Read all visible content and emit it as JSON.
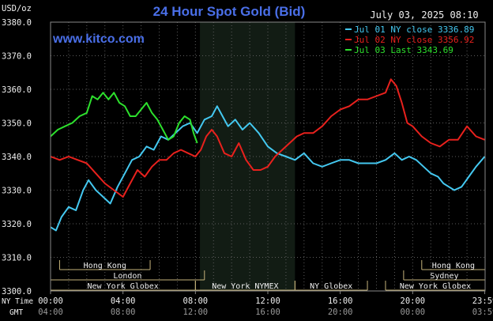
{
  "chart_data": {
    "type": "line",
    "title": "24 Hour Spot Gold (Bid)",
    "watermark": "www.kitco.com",
    "timestamp": "July 03, 2025 08:10",
    "ylabel": "USD/oz",
    "ylim": [
      3300,
      3380
    ],
    "y_ticks": [
      3300,
      3310,
      3320,
      3330,
      3340,
      3350,
      3360,
      3370,
      3380
    ],
    "y_tick_labels": [
      "3300.0",
      "3310.0",
      "3320.0",
      "3330.0",
      "3340.0",
      "3350.0",
      "3360.0",
      "3370.0",
      "3380.0"
    ],
    "xlim": [
      0,
      24
    ],
    "x_row_labels": [
      "NY Time",
      "GMT"
    ],
    "x_ticks_ny": [
      "00:00",
      "04:00",
      "08:00",
      "12:00",
      "16:00",
      "20:00",
      "23:59"
    ],
    "x_ticks_gmt": [
      "04:00",
      "08:00",
      "12:00",
      "16:00",
      "20:00",
      "00:00",
      "03:59"
    ],
    "x_tick_hours": [
      0,
      4,
      8,
      12,
      16,
      20,
      23.98
    ],
    "grid": true,
    "legend_position": "top-right",
    "sessions": [
      {
        "name": "Hong Kong",
        "row": 0,
        "start": 0.5,
        "end": 5.5
      },
      {
        "name": "Hong Kong",
        "row": 0,
        "start": 20.5,
        "end": 24
      },
      {
        "name": "London",
        "row": 1,
        "start": 0,
        "end": 8.5
      },
      {
        "name": "Sydney",
        "row": 1,
        "start": 19.5,
        "end": 24
      },
      {
        "name": "New York Globex",
        "row": 2,
        "start": 0,
        "end": 8
      },
      {
        "name": "New York NYMEX",
        "row": 2,
        "start": 8,
        "end": 13.5
      },
      {
        "name": "NY Globex",
        "row": 2,
        "start": 13.5,
        "end": 17.5
      },
      {
        "name": "New York Globex",
        "row": 2,
        "start": 18.5,
        "end": 24
      }
    ],
    "highlight_band": {
      "start": 8.25,
      "end": 13.5
    },
    "series": [
      {
        "name": "Jul 01 NY close 3336.89",
        "color": "#44c8f0",
        "points": [
          [
            0,
            3319
          ],
          [
            0.3,
            3318
          ],
          [
            0.6,
            3322
          ],
          [
            1.0,
            3325
          ],
          [
            1.4,
            3324
          ],
          [
            1.8,
            3330
          ],
          [
            2.1,
            3333
          ],
          [
            2.5,
            3330
          ],
          [
            2.9,
            3328
          ],
          [
            3.3,
            3326
          ],
          [
            3.7,
            3331
          ],
          [
            4.1,
            3335
          ],
          [
            4.5,
            3339
          ],
          [
            4.9,
            3340
          ],
          [
            5.3,
            3343
          ],
          [
            5.7,
            3342
          ],
          [
            6.1,
            3346
          ],
          [
            6.5,
            3345
          ],
          [
            6.9,
            3347
          ],
          [
            7.3,
            3349
          ],
          [
            7.7,
            3350
          ],
          [
            8.1,
            3347
          ],
          [
            8.5,
            3351
          ],
          [
            8.9,
            3352
          ],
          [
            9.2,
            3355
          ],
          [
            9.5,
            3352
          ],
          [
            9.8,
            3349
          ],
          [
            10.2,
            3351
          ],
          [
            10.6,
            3348
          ],
          [
            11.0,
            3350
          ],
          [
            11.5,
            3347
          ],
          [
            12.0,
            3343
          ],
          [
            12.5,
            3341
          ],
          [
            13.0,
            3340
          ],
          [
            13.5,
            3339
          ],
          [
            14.0,
            3341
          ],
          [
            14.5,
            3338
          ],
          [
            15.0,
            3337
          ],
          [
            15.5,
            3338
          ],
          [
            16.0,
            3339
          ],
          [
            16.5,
            3339
          ],
          [
            17.0,
            3338
          ],
          [
            17.5,
            3338
          ],
          [
            18.0,
            3338
          ],
          [
            18.5,
            3339
          ],
          [
            19.0,
            3341
          ],
          [
            19.4,
            3339
          ],
          [
            19.8,
            3340
          ],
          [
            20.2,
            3339
          ],
          [
            20.6,
            3337
          ],
          [
            21.0,
            3335
          ],
          [
            21.4,
            3334
          ],
          [
            21.7,
            3332
          ],
          [
            22.0,
            3331
          ],
          [
            22.3,
            3330
          ],
          [
            22.7,
            3331
          ],
          [
            23.1,
            3334
          ],
          [
            23.5,
            3337
          ],
          [
            23.98,
            3340
          ]
        ]
      },
      {
        "name": "Jul 02 NY close 3356.92",
        "color": "#e8211d",
        "points": [
          [
            0,
            3340
          ],
          [
            0.5,
            3339
          ],
          [
            1.0,
            3340
          ],
          [
            1.5,
            3339
          ],
          [
            2.0,
            3338
          ],
          [
            2.5,
            3335
          ],
          [
            3.0,
            3332
          ],
          [
            3.5,
            3330
          ],
          [
            4.0,
            3328
          ],
          [
            4.4,
            3332
          ],
          [
            4.8,
            3336
          ],
          [
            5.2,
            3334
          ],
          [
            5.6,
            3337
          ],
          [
            6.0,
            3339
          ],
          [
            6.4,
            3339
          ],
          [
            6.8,
            3341
          ],
          [
            7.2,
            3342
          ],
          [
            7.6,
            3341
          ],
          [
            8.0,
            3340
          ],
          [
            8.3,
            3342
          ],
          [
            8.6,
            3346
          ],
          [
            8.9,
            3348
          ],
          [
            9.2,
            3346
          ],
          [
            9.6,
            3341
          ],
          [
            10.0,
            3340
          ],
          [
            10.4,
            3344
          ],
          [
            10.8,
            3339
          ],
          [
            11.2,
            3336
          ],
          [
            11.6,
            3336
          ],
          [
            12.0,
            3337
          ],
          [
            12.4,
            3340
          ],
          [
            12.8,
            3342
          ],
          [
            13.2,
            3344
          ],
          [
            13.6,
            3346
          ],
          [
            14.0,
            3347
          ],
          [
            14.5,
            3347
          ],
          [
            15.0,
            3349
          ],
          [
            15.5,
            3352
          ],
          [
            16.0,
            3354
          ],
          [
            16.5,
            3355
          ],
          [
            17.0,
            3357
          ],
          [
            17.5,
            3357
          ],
          [
            18.0,
            3358
          ],
          [
            18.5,
            3359
          ],
          [
            18.8,
            3363
          ],
          [
            19.1,
            3361
          ],
          [
            19.4,
            3356
          ],
          [
            19.7,
            3350
          ],
          [
            20.0,
            3349
          ],
          [
            20.5,
            3346
          ],
          [
            21.0,
            3344
          ],
          [
            21.5,
            3343
          ],
          [
            22.0,
            3345
          ],
          [
            22.5,
            3345
          ],
          [
            23.0,
            3349
          ],
          [
            23.5,
            3346
          ],
          [
            23.98,
            3345
          ]
        ]
      },
      {
        "name": "Jul 03 Last 3343.69",
        "color": "#2de02d",
        "points": [
          [
            0,
            3346
          ],
          [
            0.4,
            3348
          ],
          [
            0.8,
            3349
          ],
          [
            1.2,
            3350
          ],
          [
            1.6,
            3352
          ],
          [
            2.0,
            3353
          ],
          [
            2.3,
            3358
          ],
          [
            2.6,
            3357
          ],
          [
            2.9,
            3359
          ],
          [
            3.2,
            3357
          ],
          [
            3.5,
            3359
          ],
          [
            3.8,
            3356
          ],
          [
            4.1,
            3355
          ],
          [
            4.4,
            3352
          ],
          [
            4.7,
            3352
          ],
          [
            5.0,
            3354
          ],
          [
            5.3,
            3356
          ],
          [
            5.6,
            3353
          ],
          [
            5.9,
            3351
          ],
          [
            6.2,
            3348
          ],
          [
            6.5,
            3345
          ],
          [
            6.8,
            3346
          ],
          [
            7.1,
            3350
          ],
          [
            7.4,
            3352
          ],
          [
            7.7,
            3351
          ],
          [
            7.9,
            3347
          ],
          [
            8.1,
            3344
          ]
        ]
      }
    ]
  }
}
